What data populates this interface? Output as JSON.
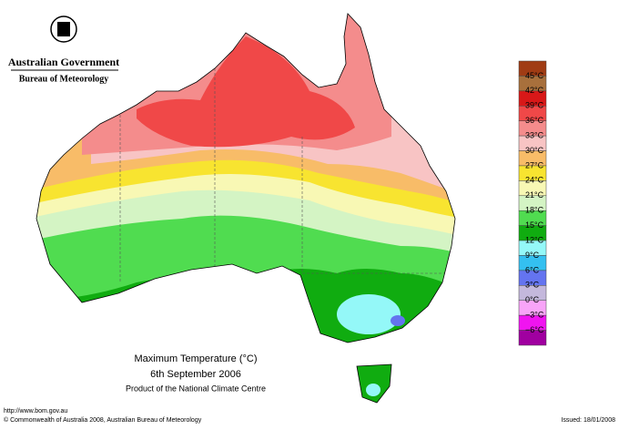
{
  "header": {
    "title": "Australian Government",
    "subtitle": "Bureau of Meteorology"
  },
  "caption": {
    "title": "Maximum Temperature (°C)",
    "date": "6th September 2006",
    "product": "Product of the National Climate Centre"
  },
  "legend": {
    "labels": [
      "45°C",
      "42°C",
      "39°C",
      "36°C",
      "33°C",
      "30°C",
      "27°C",
      "24°C",
      "21°C",
      "18°C",
      "15°C",
      "12°C",
      "9°C",
      "6°C",
      "3°C",
      "0°C",
      "−3°C",
      "−6°C"
    ],
    "colors": [
      "#a03c14",
      "#a8703c",
      "#d81818",
      "#f04848",
      "#f48c8c",
      "#f8c4c4",
      "#f8bc68",
      "#f8e430",
      "#f8f8b4",
      "#d4f4c4",
      "#50dc50",
      "#10ac10",
      "#94f8f8",
      "#34c0f0",
      "#6474f0",
      "#c4b8dc",
      "#f8a4f8",
      "#f014f0",
      "#a000a0"
    ]
  },
  "footer": {
    "url": "http://www.bom.gov.au",
    "copyright": "© Commonwealth of Australia 2008, Australian Bureau of Meteorology",
    "issued": "Issued: 18/01/2008"
  }
}
